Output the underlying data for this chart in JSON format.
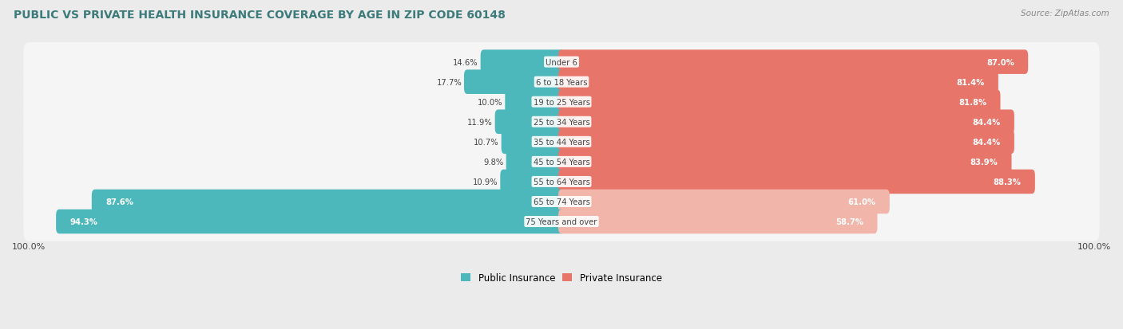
{
  "title": "PUBLIC VS PRIVATE HEALTH INSURANCE COVERAGE BY AGE IN ZIP CODE 60148",
  "source": "Source: ZipAtlas.com",
  "categories": [
    "Under 6",
    "6 to 18 Years",
    "19 to 25 Years",
    "25 to 34 Years",
    "35 to 44 Years",
    "45 to 54 Years",
    "55 to 64 Years",
    "65 to 74 Years",
    "75 Years and over"
  ],
  "public_values": [
    14.6,
    17.7,
    10.0,
    11.9,
    10.7,
    9.8,
    10.9,
    87.6,
    94.3
  ],
  "private_values": [
    87.0,
    81.4,
    81.8,
    84.4,
    84.4,
    83.9,
    88.3,
    61.0,
    58.7
  ],
  "public_color_strong": "#4db8bb",
  "public_color_light": "#4db8bb",
  "private_color_strong": "#e8756a",
  "private_color_light": "#f2b5aa",
  "bg_color": "#ebebeb",
  "row_bg_color": "#f5f5f5",
  "title_color": "#3d7a7a",
  "source_color": "#888888",
  "text_dark": "#444444",
  "text_white": "#ffffff",
  "legend_public": "Public Insurance",
  "legend_private": "Private Insurance",
  "figsize": [
    14.06,
    4.14
  ],
  "dpi": 100
}
